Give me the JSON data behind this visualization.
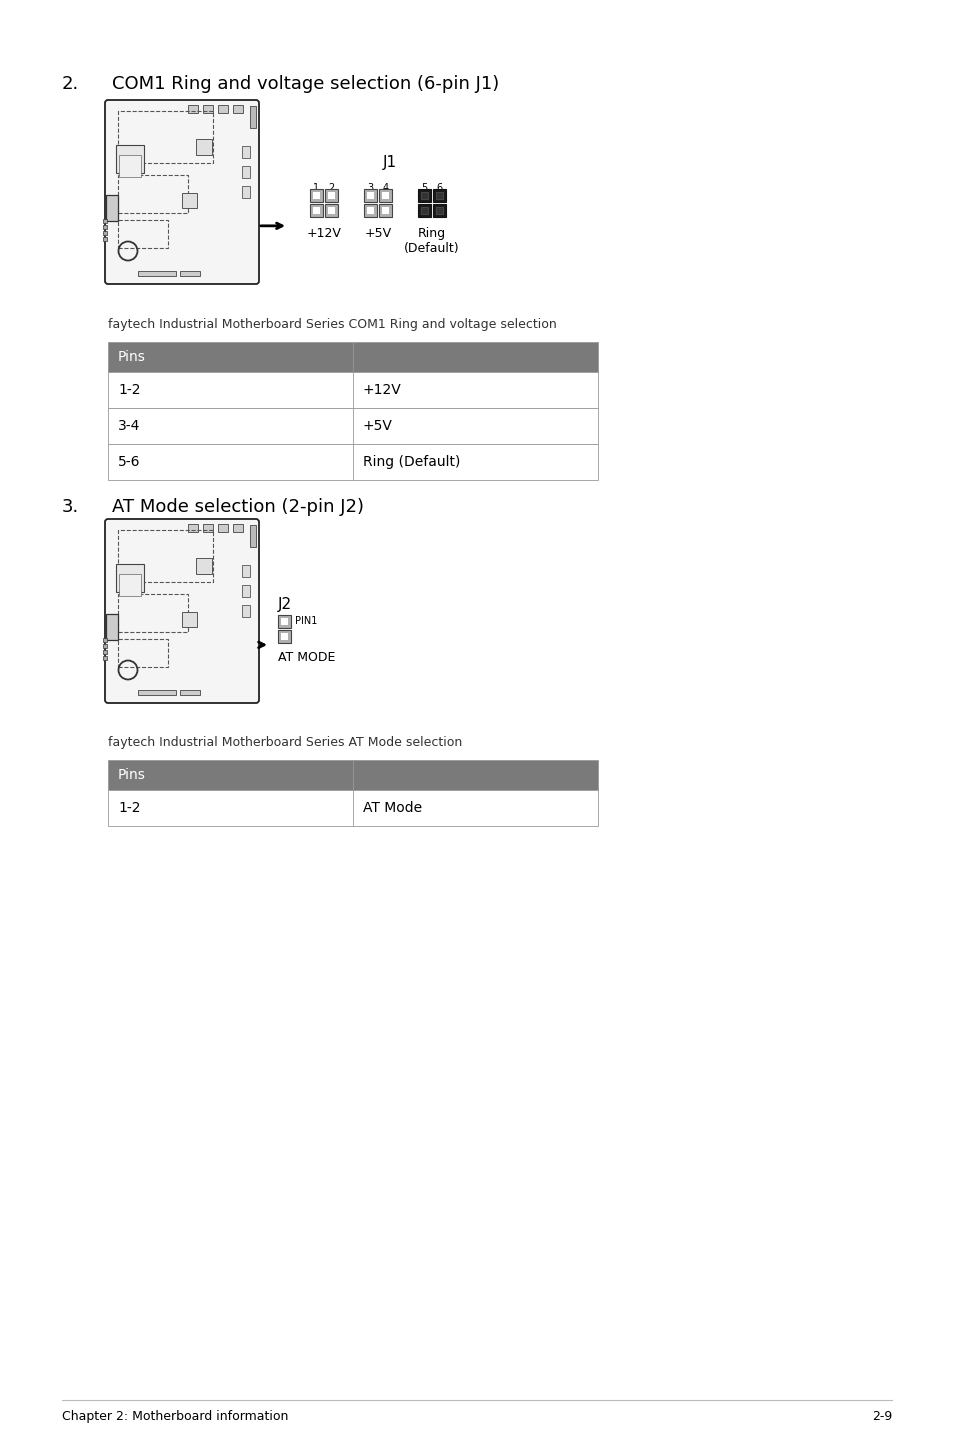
{
  "title_num1": "2.",
  "title_text1": "COM1 Ring and voltage selection (6-pin J1)",
  "title_num2": "3.",
  "title_text2": "AT Mode selection (2-pin J2)",
  "caption1": "faytech Industrial Motherboard Series COM1 Ring and voltage selection",
  "caption2": "faytech Industrial Motherboard Series AT Mode selection",
  "table1_header": "Pins",
  "table1_rows": [
    [
      "1-2",
      "+12V"
    ],
    [
      "3-4",
      "+5V"
    ],
    [
      "5-6",
      "Ring (Default)"
    ]
  ],
  "table2_header": "Pins",
  "table2_rows": [
    [
      "1-2",
      "AT Mode"
    ]
  ],
  "j1_label": "J1",
  "j2_label": "J2",
  "j1_pin_labels": [
    "1  2",
    "3  4",
    "5  6"
  ],
  "j1_connector_labels": [
    "+12V",
    "+5V",
    "Ring\n(Default)"
  ],
  "j2_pin_label": "PIN1",
  "j2_connector_label": "AT MODE",
  "footer_left": "Chapter 2: Motherboard information",
  "footer_right": "2-9",
  "bg_color": "#ffffff",
  "header_color": "#7a7a7a",
  "header_text_color": "#ffffff",
  "table_border_color": "#999999",
  "text_color": "#000000",
  "footer_line_color": "#bbbbbb"
}
